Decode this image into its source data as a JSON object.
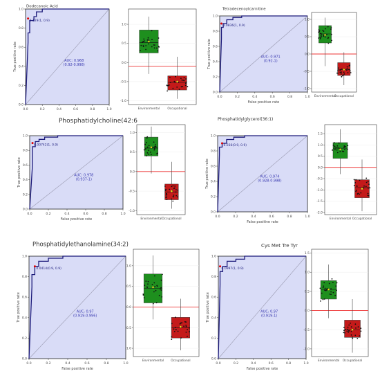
{
  "chart_data": [
    {
      "type": "roc",
      "title": "Dodecanoic Acid",
      "xlabel": "",
      "ylabel": "True positive rate",
      "xlim": [
        0,
        1
      ],
      "ylim": [
        0,
        1
      ],
      "x_ticks": [
        "0.0",
        "0.2",
        "0.4",
        "0.6",
        "0.8",
        "1.0"
      ],
      "y_ticks": [
        "0.0",
        "0.2",
        "0.4",
        "0.6",
        "0.8",
        "1.0"
      ],
      "cutoff_label": "0.129(1, 0.9)",
      "auc_label": "AUC: 0.968",
      "ci_label": "(0.92-0.998)",
      "roc_x": [
        0,
        0.03,
        0.03,
        0.05,
        0.05,
        0.1,
        0.1,
        0.13,
        0.13,
        0.2,
        0.2,
        0.35,
        1.0
      ],
      "roc_y": [
        0,
        0.65,
        0.75,
        0.75,
        0.88,
        0.88,
        0.92,
        0.92,
        0.97,
        0.97,
        1.0,
        1.0,
        1.0
      ],
      "cutoff_point": [
        0.03,
        0.9
      ]
    },
    {
      "type": "boxplot",
      "categories": [
        "Environmental",
        "Occupational"
      ],
      "ylim": [
        -1.1,
        1.4
      ],
      "y_ticks": [
        "1.0",
        "0.5",
        "0.0",
        "-0.5",
        "-1.0"
      ],
      "boxes": [
        {
          "q1": 0.25,
          "median": 0.52,
          "q3": 0.85,
          "whisker_low": -0.3,
          "whisker_high": 1.2,
          "mean": 0.55,
          "color": "#1e8f1e"
        },
        {
          "q1": -0.72,
          "median": -0.52,
          "q3": -0.35,
          "whisker_low": -0.95,
          "whisker_high": 0.15,
          "mean": -0.5,
          "color": "#c41a1a"
        }
      ],
      "threshold": -0.1
    },
    {
      "type": "roc",
      "title": "Tetradecenoylcarnitine",
      "xlabel": "False positive rate",
      "ylabel": "True positive rate",
      "xlim": [
        0,
        1
      ],
      "ylim": [
        0,
        1
      ],
      "x_ticks": [
        "0.0",
        "0.2",
        "0.4",
        "0.6",
        "0.8",
        "1.0"
      ],
      "y_ticks": [
        "0.0",
        "0.2",
        "0.4",
        "0.6",
        "0.8",
        "1.0"
      ],
      "cutoff_label": "0.0836(1, 0.9)",
      "auc_label": "AUC: 0.971",
      "ci_label": "(0.92-1)",
      "roc_x": [
        0,
        0.02,
        0.02,
        0.04,
        0.04,
        0.08,
        0.08,
        0.15,
        0.15,
        0.25,
        0.25,
        1.0
      ],
      "roc_y": [
        0,
        0.7,
        0.85,
        0.85,
        0.9,
        0.9,
        0.95,
        0.95,
        0.98,
        0.98,
        1.0,
        1.0
      ],
      "cutoff_point": [
        0.02,
        0.9
      ]
    },
    {
      "type": "boxplot",
      "categories": [
        "Environmental",
        "Occupational"
      ],
      "ylim": [
        -1.1,
        1.2
      ],
      "y_ticks": [
        "1.0",
        "0.5",
        "0.0",
        "-0.5",
        "-1.0"
      ],
      "boxes": [
        {
          "q1": 0.32,
          "median": 0.58,
          "q3": 0.82,
          "whisker_low": -0.35,
          "whisker_high": 1.05,
          "mean": 0.55,
          "color": "#1e8f1e"
        },
        {
          "q1": -0.62,
          "median": -0.45,
          "q3": -0.25,
          "whisker_low": -0.9,
          "whisker_high": 0.05,
          "mean": -0.45,
          "color": "#c41a1a"
        }
      ],
      "threshold": 0.0
    },
    {
      "type": "roc",
      "title": "Phosphatidylcholine(42:6",
      "xlabel": "False positive rate",
      "ylabel": "True positive rate",
      "xlim": [
        0,
        1
      ],
      "ylim": [
        0,
        1
      ],
      "x_ticks": [
        "0.0",
        "0.2",
        "0.4",
        "0.6",
        "0.8",
        "1.0"
      ],
      "y_ticks": [
        "0.0",
        "0.2",
        "0.4",
        "0.6",
        "0.8",
        "1.0"
      ],
      "cutoff_label": "0.00742(1, 0.9)",
      "auc_label": "AUC: 0.978",
      "ci_label": "(0.937-1)",
      "roc_x": [
        0,
        0.03,
        0.03,
        0.06,
        0.06,
        0.1,
        0.1,
        0.16,
        0.16,
        0.3,
        0.3,
        1.0
      ],
      "roc_y": [
        0,
        0.6,
        0.85,
        0.85,
        0.92,
        0.92,
        0.95,
        0.95,
        0.98,
        0.98,
        1.0,
        1.0
      ],
      "cutoff_point": [
        0.03,
        0.9
      ]
    },
    {
      "type": "boxplot",
      "categories": [
        "Environmental",
        "Occupational"
      ],
      "ylim": [
        -1.1,
        1.2
      ],
      "y_ticks": [
        "1.0",
        "0.5",
        "0.0",
        "-0.5",
        "-1.0"
      ],
      "boxes": [
        {
          "q1": 0.4,
          "median": 0.6,
          "q3": 0.88,
          "whisker_low": -0.05,
          "whisker_high": 1.15,
          "mean": 0.62,
          "color": "#1e8f1e"
        },
        {
          "q1": -0.72,
          "median": -0.52,
          "q3": -0.32,
          "whisker_low": -0.95,
          "whisker_high": 0.25,
          "mean": -0.5,
          "color": "#c41a1a"
        }
      ],
      "threshold": 0.0
    },
    {
      "type": "roc",
      "title": "Phosphatidylglycerol(36:1)",
      "xlabel": "False positive rate",
      "ylabel": "True positive rate",
      "xlim": [
        0,
        1
      ],
      "ylim": [
        0,
        1
      ],
      "x_ticks": [
        "0.0",
        "0.2",
        "0.4",
        "0.6",
        "0.8",
        "1.0"
      ],
      "y_ticks": [
        "0.0",
        "0.2",
        "0.4",
        "0.6",
        "0.8",
        "1.0"
      ],
      "cutoff_label": "0.036(0.9, 0.9)",
      "auc_label": "AUC: 0.974",
      "ci_label": "(0.928-0.998)",
      "roc_x": [
        0,
        0.02,
        0.02,
        0.05,
        0.05,
        0.1,
        0.1,
        0.18,
        0.18,
        0.3,
        0.3,
        1.0
      ],
      "roc_y": [
        0,
        0.75,
        0.85,
        0.85,
        0.9,
        0.9,
        0.95,
        0.95,
        0.98,
        0.98,
        1.0,
        1.0
      ],
      "cutoff_point": [
        0.05,
        0.9
      ]
    },
    {
      "type": "boxplot",
      "categories": [
        "Environmental",
        "Occupational"
      ],
      "ylim": [
        -2.1,
        1.9
      ],
      "y_ticks": [
        "1.5",
        "1.0",
        "0.5",
        "0.0",
        "-0.5",
        "-1.0",
        "-1.5",
        "-2.0"
      ],
      "boxes": [
        {
          "q1": 0.4,
          "median": 0.85,
          "q3": 1.1,
          "whisker_low": -0.3,
          "whisker_high": 1.7,
          "mean": 0.8,
          "color": "#1e8f1e"
        },
        {
          "q1": -1.35,
          "median": -0.9,
          "q3": -0.55,
          "whisker_low": -1.95,
          "whisker_high": 0.35,
          "mean": -0.95,
          "color": "#c41a1a"
        }
      ],
      "threshold": 0.0
    },
    {
      "type": "roc",
      "title": "Phosphatidylethanolamine(34:2)",
      "xlabel": "False positive rate",
      "ylabel": "True positive rate",
      "xlim": [
        0,
        1
      ],
      "ylim": [
        0,
        1
      ],
      "x_ticks": [
        "0.0",
        "0.2",
        "0.4",
        "0.6",
        "0.8",
        "1.0"
      ],
      "y_ticks": [
        "0.0",
        "0.2",
        "0.4",
        "0.6",
        "0.8",
        "1.0"
      ],
      "cutoff_label": "0.0414(0.9, 0.9)",
      "auc_label": "AUC: 0.97",
      "ci_label": "(0.919-0.996)",
      "roc_x": [
        0,
        0.03,
        0.03,
        0.06,
        0.06,
        0.1,
        0.1,
        0.2,
        0.2,
        0.35,
        0.35,
        1.0
      ],
      "roc_y": [
        0,
        0.7,
        0.82,
        0.82,
        0.9,
        0.9,
        0.95,
        0.95,
        0.98,
        0.98,
        1.0,
        1.0
      ],
      "cutoff_point": [
        0.06,
        0.9
      ]
    },
    {
      "type": "boxplot",
      "categories": [
        "Environmental",
        "Occupational"
      ],
      "ylim": [
        -1.2,
        1.4
      ],
      "y_ticks": [
        "1.0",
        "0.5",
        "0.0",
        "-0.5",
        "-1.0"
      ],
      "boxes": [
        {
          "q1": 0.1,
          "median": 0.45,
          "q3": 0.8,
          "whisker_low": -0.3,
          "whisker_high": 1.25,
          "mean": 0.48,
          "color": "#1e8f1e"
        },
        {
          "q1": -0.75,
          "median": -0.5,
          "q3": -0.25,
          "whisker_low": -1.05,
          "whisker_high": 0.2,
          "mean": -0.48,
          "color": "#c41a1a"
        }
      ],
      "threshold": 0.0
    },
    {
      "type": "roc",
      "title": "Cys Met Tre Tyr",
      "xlabel": "False positive rate",
      "ylabel": "True positive rate",
      "xlim": [
        0,
        1
      ],
      "ylim": [
        0,
        1
      ],
      "x_ticks": [
        "0.0",
        "0.2",
        "0.4",
        "0.6",
        "0.8",
        "1.0"
      ],
      "y_ticks": [
        "0.0",
        "0.2",
        "0.4",
        "0.6",
        "0.8",
        "1.0"
      ],
      "cutoff_label": "0.0997(1, 0.9)",
      "auc_label": "AUC: 0.97",
      "ci_label": "(0.919-1)",
      "roc_x": [
        0,
        0.02,
        0.02,
        0.05,
        0.05,
        0.1,
        0.1,
        0.2,
        0.2,
        0.3,
        0.3,
        1.0
      ],
      "roc_y": [
        0,
        0.72,
        0.85,
        0.85,
        0.9,
        0.9,
        0.95,
        0.95,
        0.97,
        0.97,
        1.0,
        1.0
      ],
      "cutoff_point": [
        0.02,
        0.9
      ]
    },
    {
      "type": "boxplot",
      "categories": [
        "Environmental",
        "Occupational"
      ],
      "ylim": [
        -1.2,
        1.6
      ],
      "y_ticks": [
        "1.5",
        "1.0",
        "0.5",
        "0.0",
        "-0.5",
        "-1.0"
      ],
      "boxes": [
        {
          "q1": 0.3,
          "median": 0.55,
          "q3": 0.78,
          "whisker_low": -0.2,
          "whisker_high": 1.2,
          "mean": 0.55,
          "color": "#1e8f1e"
        },
        {
          "q1": -0.7,
          "median": -0.5,
          "q3": -0.25,
          "whisker_low": -1.1,
          "whisker_high": 0.3,
          "mean": -0.5,
          "color": "#c41a1a"
        }
      ],
      "threshold": 0.0
    }
  ]
}
